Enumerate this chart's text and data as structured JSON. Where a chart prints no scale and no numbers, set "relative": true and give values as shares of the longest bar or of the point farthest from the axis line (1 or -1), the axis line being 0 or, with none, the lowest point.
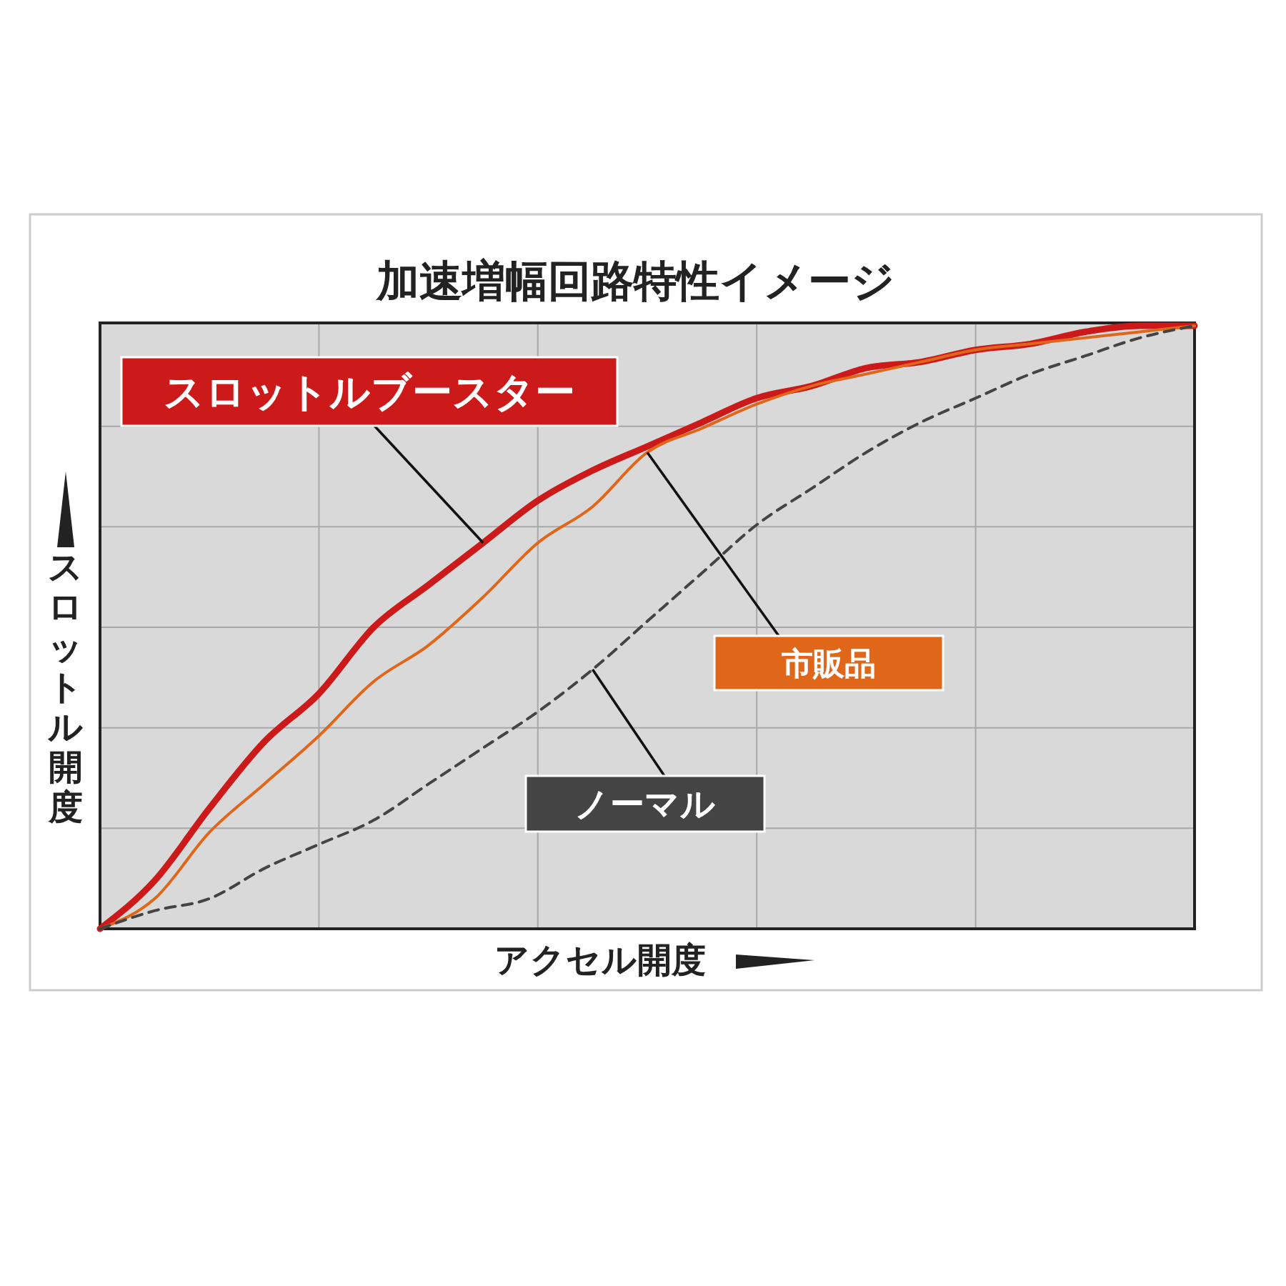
{
  "chart_data": {
    "type": "line",
    "title": "加速増幅回路特性イメージ",
    "xlabel": "アクセル開度",
    "ylabel": "スロットル開度",
    "relative": true,
    "grid": true,
    "legend": false,
    "categories": [
      null,
      null,
      null,
      null,
      null,
      null,
      null,
      null,
      null,
      null,
      null,
      null,
      null,
      null,
      null,
      null,
      null,
      null,
      null,
      null,
      null
    ],
    "series": [
      {
        "name": "スロットルブースター",
        "color": "#cc1a1a",
        "line_style": "solid",
        "values": [
          0,
          0.08,
          0.2,
          0.31,
          0.39,
          0.5,
          0.57,
          0.64,
          0.71,
          0.76,
          0.8,
          0.84,
          0.88,
          0.9,
          0.93,
          0.94,
          0.96,
          0.97,
          0.99,
          1,
          1
        ]
      },
      {
        "name": "市販品",
        "color": "#e0661a",
        "line_style": "solid",
        "values": [
          0,
          0.05,
          0.16,
          0.24,
          0.32,
          0.41,
          0.47,
          0.55,
          0.64,
          0.7,
          0.79,
          0.83,
          0.87,
          0.9,
          0.92,
          0.94,
          0.96,
          0.97,
          0.98,
          0.99,
          1
        ]
      },
      {
        "name": "ノーマル",
        "color": "#444444",
        "line_style": "dashed",
        "values": [
          0,
          0.03,
          0.05,
          0.1,
          0.14,
          0.18,
          0.24,
          0.3,
          0.36,
          0.43,
          0.51,
          0.59,
          0.67,
          0.73,
          0.79,
          0.84,
          0.88,
          0.92,
          0.95,
          0.98,
          1
        ]
      }
    ]
  }
}
